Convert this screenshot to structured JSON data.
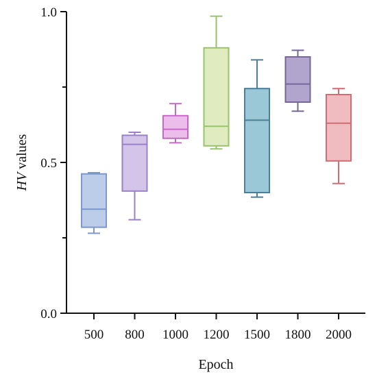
{
  "chart_data": {
    "type": "box",
    "title": "",
    "xlabel": "Epoch",
    "ylabel_italic": "HV",
    "ylabel_rest": " values",
    "ylim": [
      0.0,
      1.0
    ],
    "y_major_ticks": [
      0.0,
      0.5,
      1.0
    ],
    "y_tick_labels": [
      "0.0",
      "0.5",
      "1.0"
    ],
    "y_minor_ticks": [
      0.25,
      0.75
    ],
    "grid": false,
    "categories": [
      "500",
      "800",
      "1000",
      "1200",
      "1500",
      "1800",
      "2000"
    ],
    "boxes": [
      {
        "category": "500",
        "min": 0.265,
        "q1": 0.285,
        "median": 0.345,
        "q3": 0.462,
        "max": 0.466,
        "fill": "#bccde9",
        "stroke": "#7c97cb"
      },
      {
        "category": "800",
        "min": 0.31,
        "q1": 0.405,
        "median": 0.56,
        "q3": 0.59,
        "max": 0.6,
        "fill": "#d4c4ea",
        "stroke": "#9a7fc9"
      },
      {
        "category": "1000",
        "min": 0.565,
        "q1": 0.58,
        "median": 0.61,
        "q3": 0.655,
        "max": 0.695,
        "fill": "#ecbdea",
        "stroke": "#c966c9"
      },
      {
        "category": "1200",
        "min": 0.545,
        "q1": 0.555,
        "median": 0.62,
        "q3": 0.88,
        "max": 0.985,
        "fill": "#e0ecc0",
        "stroke": "#99c26e"
      },
      {
        "category": "1500",
        "min": 0.385,
        "q1": 0.4,
        "median": 0.64,
        "q3": 0.745,
        "max": 0.84,
        "fill": "#9ac8d6",
        "stroke": "#4b7f97"
      },
      {
        "category": "1800",
        "min": 0.67,
        "q1": 0.7,
        "median": 0.76,
        "q3": 0.85,
        "max": 0.872,
        "fill": "#b2a5cd",
        "stroke": "#76679a"
      },
      {
        "category": "2000",
        "min": 0.43,
        "q1": 0.505,
        "median": 0.63,
        "q3": 0.725,
        "max": 0.745,
        "fill": "#f0bcbf",
        "stroke": "#d06c72"
      }
    ]
  }
}
